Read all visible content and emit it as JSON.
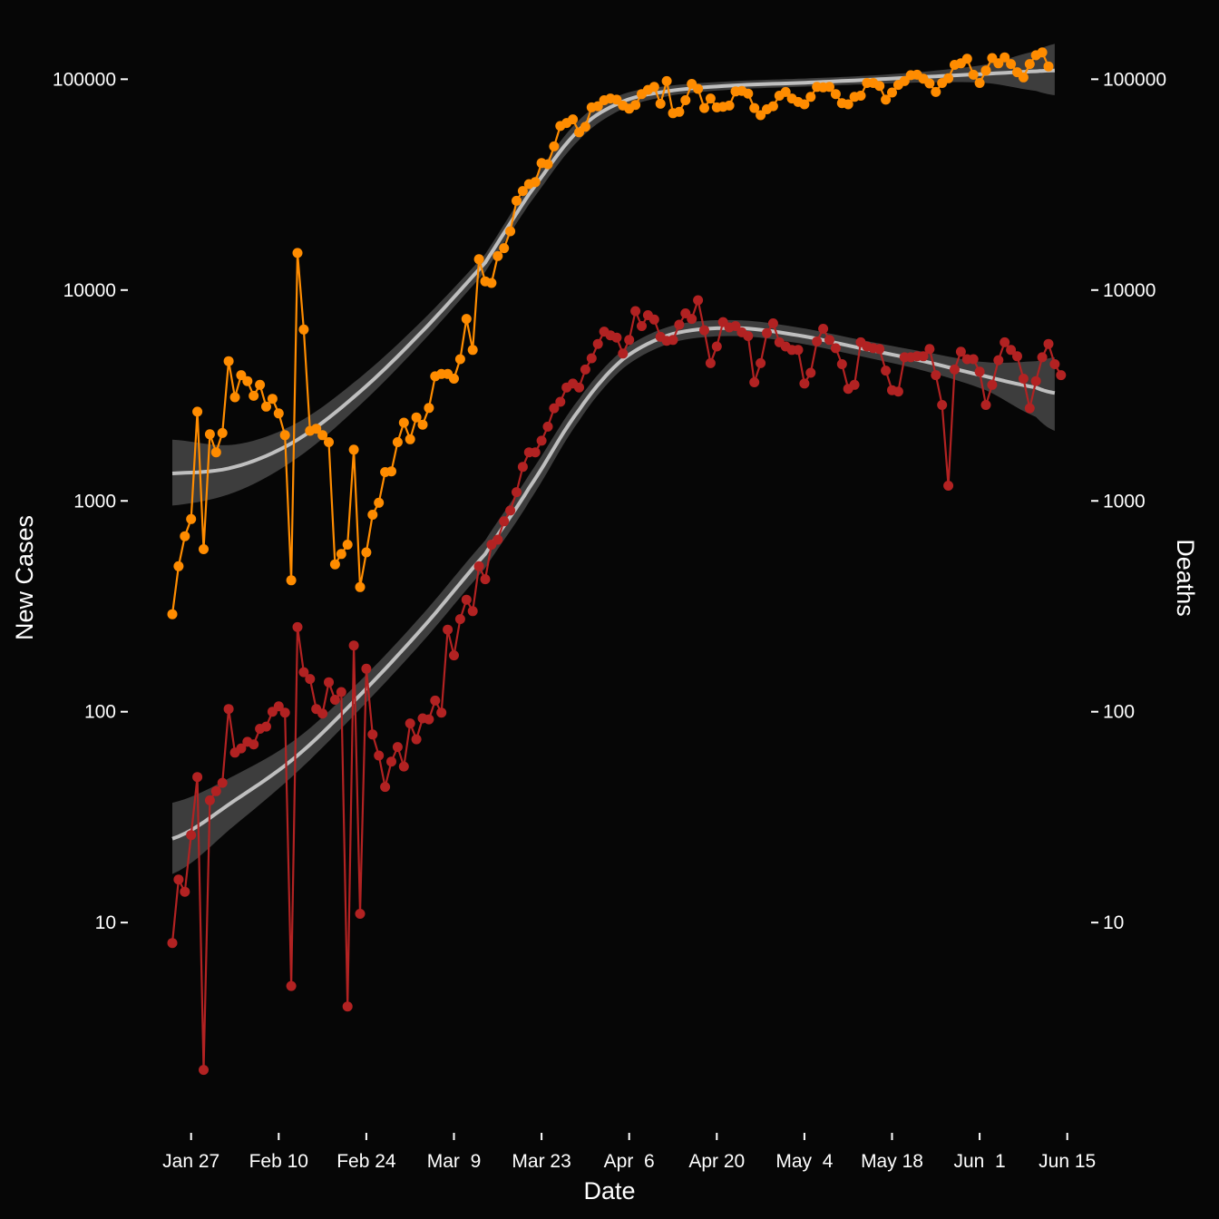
{
  "chart_data": {
    "type": "line",
    "xlabel": "Date",
    "ylabel": "New Cases",
    "y2label": "Deaths",
    "y_scale": "log",
    "ylim": [
      1.1,
      180000
    ],
    "y_ticks": [
      10,
      100,
      1000,
      10000,
      100000
    ],
    "y_tick_labels": [
      "10",
      "100",
      "1000",
      "10000",
      "100000"
    ],
    "x_start": "2020-01-24",
    "x_ticks": [
      "2020-01-27",
      "2020-02-10",
      "2020-02-24",
      "2020-03-09",
      "2020-03-23",
      "2020-04-06",
      "2020-04-20",
      "2020-05-04",
      "2020-05-18",
      "2020-06-01",
      "2020-06-15"
    ],
    "x_tick_labels": [
      "Jan 27",
      "Feb 10",
      "Feb 24",
      "Mar  9",
      "Mar 23",
      "Apr  6",
      "Apr 20",
      "May  4",
      "May 18",
      "Jun  1",
      "Jun 15"
    ],
    "grid": false,
    "series": [
      {
        "name": "New Cases",
        "color": "#ff8c00",
        "values": [
          290,
          490,
          680,
          820,
          2650,
          590,
          2070,
          1700,
          2100,
          4600,
          3100,
          3950,
          3700,
          3150,
          3550,
          2800,
          3050,
          2600,
          2050,
          420,
          15000,
          6500,
          2150,
          2200,
          2050,
          1900,
          500,
          560,
          620,
          1750,
          390,
          570,
          860,
          980,
          1370,
          1380,
          1900,
          2350,
          1960,
          2490,
          2300,
          2760,
          3900,
          4000,
          4000,
          3800,
          4700,
          7300,
          5200,
          14000,
          11000,
          10800,
          14500,
          15800,
          19000,
          26500,
          29500,
          31800,
          32500,
          40000,
          39500,
          48000,
          60000,
          62000,
          64500,
          56000,
          59500,
          73500,
          74500,
          79500,
          81000,
          80000,
          75000,
          72500,
          75500,
          85000,
          89000,
          92000,
          76500,
          98000,
          69000,
          70000,
          79500,
          95000,
          90000,
          73000,
          81000,
          73500,
          74000,
          75000,
          87500,
          88000,
          85500,
          73000,
          67500,
          72000,
          74500,
          83500,
          87000,
          81000,
          78000,
          76000,
          82500,
          92000,
          91500,
          92000,
          85000,
          77000,
          76000,
          82500,
          83500,
          96000,
          96000,
          93000,
          80000,
          86500,
          94000,
          98000,
          104500,
          105000,
          100500,
          95500,
          87000,
          96000,
          101000,
          117000,
          119000,
          125000,
          105000,
          96000,
          110000,
          126000,
          119000,
          127000,
          118000,
          108000,
          102000,
          118000,
          130000,
          134000,
          115000
        ]
      },
      {
        "name": "Deaths",
        "color": "#b22222",
        "values": [
          8,
          16,
          14,
          26,
          49,
          2,
          38,
          42,
          46,
          103,
          64,
          67,
          72,
          70,
          83,
          85,
          100,
          106,
          99,
          5,
          252,
          154,
          143,
          103,
          98,
          138,
          114,
          124,
          4,
          206,
          11,
          160,
          78,
          62,
          44,
          58,
          68,
          55,
          88,
          74,
          93,
          92,
          113,
          99,
          245,
          185,
          275,
          340,
          300,
          490,
          425,
          620,
          655,
          800,
          900,
          1100,
          1450,
          1700,
          1700,
          1930,
          2250,
          2750,
          2950,
          3450,
          3600,
          3450,
          4200,
          4750,
          5550,
          6350,
          6100,
          5950,
          5000,
          5800,
          7950,
          6750,
          7600,
          7250,
          6000,
          5750,
          5800,
          6850,
          7750,
          7300,
          8950,
          6450,
          4500,
          5400,
          7050,
          6650,
          6750,
          6300,
          6050,
          3650,
          4500,
          6250,
          6950,
          5650,
          5400,
          5200,
          5200,
          3600,
          4050,
          5700,
          6550,
          5800,
          5300,
          4450,
          3400,
          3550,
          5650,
          5400,
          5300,
          5250,
          4150,
          3350,
          3300,
          4800,
          4800,
          4850,
          4850,
          5250,
          3950,
          2850,
          1180,
          4200,
          5100,
          4700,
          4700,
          4100,
          2850,
          3550,
          4650,
          5650,
          5200,
          4850,
          3800,
          2750,
          3700,
          4800,
          5550,
          4450,
          3950
        ]
      }
    ],
    "smooth_bands": [
      {
        "name": "New Cases trend",
        "x": [
          0,
          10,
          20,
          30,
          40,
          50,
          57,
          65,
          72,
          80,
          90,
          100,
          110,
          120,
          130,
          138,
          141
        ],
        "fit": [
          1350,
          1450,
          1950,
          3300,
          6400,
          13500,
          28500,
          57500,
          78500,
          88500,
          93500,
          96000,
          99000,
          102500,
          106000,
          109000,
          110000
        ],
        "lower": [
          950,
          1100,
          1600,
          2850,
          5700,
          12200,
          25500,
          51500,
          72500,
          84000,
          89500,
          92000,
          94500,
          96500,
          96000,
          88000,
          84000
        ],
        "upper": [
          1950,
          1850,
          2350,
          3850,
          7200,
          14800,
          31500,
          64000,
          85000,
          93500,
          98000,
          100500,
          103500,
          108500,
          117500,
          136000,
          147000
        ]
      },
      {
        "name": "Deaths trend",
        "x": [
          0,
          10,
          20,
          30,
          40,
          50,
          57,
          65,
          72,
          80,
          90,
          100,
          110,
          120,
          130,
          138,
          141
        ],
        "fit": [
          25,
          38,
          62,
          120,
          250,
          560,
          1150,
          2700,
          4700,
          6200,
          6600,
          6100,
          5300,
          4600,
          3900,
          3450,
          3250
        ],
        "lower": [
          17,
          29,
          52,
          103,
          215,
          480,
          990,
          2400,
          4250,
          5650,
          6050,
          5600,
          4850,
          4150,
          3350,
          2500,
          2150
        ],
        "upper": [
          37,
          50,
          75,
          140,
          290,
          650,
          1330,
          3050,
          5200,
          6800,
          7200,
          6650,
          5800,
          5100,
          4550,
          4600,
          4800
        ]
      }
    ],
    "trend_color": "#bfbfbf",
    "band_color": "#404040",
    "background": "#060606"
  }
}
